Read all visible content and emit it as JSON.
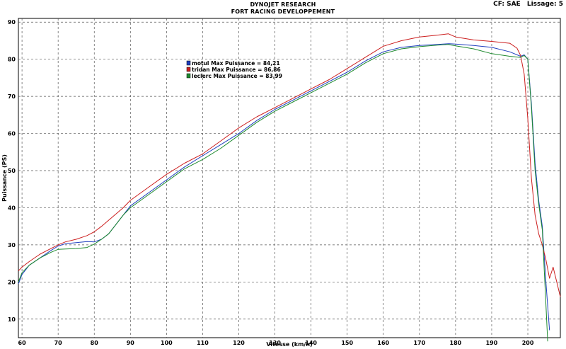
{
  "header": {
    "title": "DYNOJET RESEARCH",
    "subtitle": "FORT RACING DEVELOPPEMENT",
    "cf": "CF: SAE",
    "lissage": "Lissage: 5"
  },
  "chart_data": {
    "type": "line",
    "xlabel": "Vitesse (km/h)",
    "ylabel": "Puissance (PS)",
    "xlim": [
      59,
      209
    ],
    "ylim": [
      5,
      91
    ],
    "xticks": [
      60,
      70,
      80,
      90,
      100,
      110,
      120,
      130,
      140,
      150,
      160,
      170,
      180,
      190,
      200
    ],
    "yticks": [
      10,
      20,
      30,
      40,
      50,
      60,
      70,
      80,
      90
    ],
    "grid": true,
    "grid_style": "dashed",
    "legend_position": "upper-left",
    "series": [
      {
        "name": "motul",
        "legend_label": "motul Max Puissance = 84,21",
        "color": "#1f3fbf",
        "x": [
          59,
          60,
          62,
          65,
          68,
          70,
          72,
          75,
          78,
          80,
          82,
          84,
          86,
          88,
          90,
          95,
          100,
          105,
          110,
          115,
          120,
          125,
          130,
          135,
          140,
          145,
          150,
          155,
          160,
          165,
          170,
          175,
          178,
          180,
          185,
          190,
          195,
          198,
          199,
          200,
          201,
          202,
          203,
          204,
          205,
          206
        ],
        "y": [
          19.5,
          22,
          24.5,
          26.5,
          28.5,
          29.7,
          30.3,
          30.6,
          30.9,
          30.8,
          31.5,
          33,
          35.5,
          38,
          40.5,
          44,
          47.5,
          51,
          54,
          57,
          60,
          63.5,
          66.5,
          69,
          71.5,
          74,
          76.5,
          79.5,
          82,
          83.2,
          83.7,
          84.0,
          84.2,
          84.1,
          83.7,
          83.2,
          82.0,
          80.8,
          81.2,
          80.0,
          68,
          52,
          42,
          35,
          20,
          7
        ]
      },
      {
        "name": "tridan",
        "legend_label": "tridan Max Puissance = 86,86",
        "color": "#cc1f1f",
        "x": [
          59,
          60,
          62,
          65,
          68,
          70,
          72,
          75,
          78,
          80,
          82,
          85,
          88,
          90,
          95,
          100,
          105,
          110,
          115,
          120,
          125,
          130,
          135,
          140,
          145,
          150,
          155,
          160,
          165,
          170,
          175,
          178,
          180,
          185,
          190,
          195,
          197,
          198,
          199,
          200,
          201,
          202,
          203,
          204,
          205,
          206,
          207,
          208,
          209
        ],
        "y": [
          23,
          24,
          25.5,
          27.5,
          29,
          30,
          30.8,
          31.5,
          32.5,
          33.5,
          35,
          37.5,
          40,
          42,
          45.5,
          49,
          52,
          54.5,
          58,
          61.5,
          64.5,
          67,
          69.5,
          72,
          74.5,
          77.5,
          80.5,
          83.5,
          85,
          86.0,
          86.5,
          86.86,
          86.0,
          85.2,
          84.8,
          84.3,
          83.0,
          81,
          76,
          64,
          48,
          38,
          33,
          30,
          26,
          21,
          24,
          20,
          16
        ]
      },
      {
        "name": "leclerc",
        "legend_label": "leclerc Max Puissance = 83,99",
        "color": "#1e8a2e",
        "x": [
          59,
          60,
          62,
          65,
          68,
          70,
          72,
          75,
          78,
          80,
          82,
          84,
          86,
          88,
          90,
          95,
          100,
          105,
          110,
          115,
          120,
          125,
          130,
          135,
          140,
          145,
          150,
          155,
          160,
          165,
          170,
          175,
          178,
          180,
          185,
          190,
          195,
          198,
          199,
          200,
          201,
          202,
          203,
          204,
          205,
          205.5
        ],
        "y": [
          20,
          22.5,
          24.5,
          26.5,
          28,
          28.8,
          28.9,
          29.0,
          29.3,
          30.2,
          31.5,
          33,
          35.5,
          38,
          40,
          43.5,
          47,
          50.5,
          53,
          56,
          59.5,
          63,
          66,
          68.5,
          71,
          73.5,
          76,
          79,
          81.5,
          82.8,
          83.4,
          83.8,
          83.99,
          83.6,
          82.8,
          81.5,
          80.8,
          80.5,
          81.0,
          80.0,
          67,
          50,
          41,
          34,
          14,
          4
        ]
      }
    ]
  }
}
